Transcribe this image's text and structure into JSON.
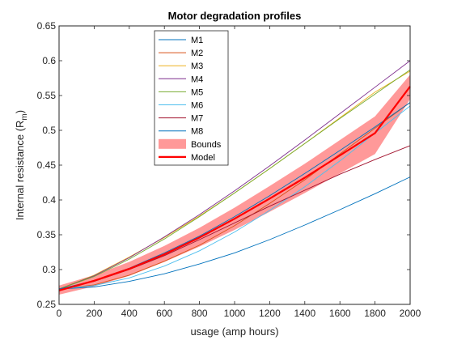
{
  "chart_data": {
    "type": "line",
    "title": "Motor degradation profiles",
    "xlabel": "usage (amp hours)",
    "ylabel_main": "Internal resistance (R",
    "ylabel_sub": "m",
    "ylabel_close": ")",
    "xlim": [
      0,
      2000
    ],
    "ylim": [
      0.25,
      0.65
    ],
    "xticks": [
      0,
      200,
      400,
      600,
      800,
      1000,
      1200,
      1400,
      1600,
      1800,
      2000
    ],
    "yticks": [
      0.25,
      0.3,
      0.35,
      0.4,
      0.45,
      0.5,
      0.55,
      0.6,
      0.65
    ],
    "ytick_labels": [
      "0.25",
      "0.3",
      "0.35",
      "0.4",
      "0.45",
      "0.5",
      "0.55",
      "0.6",
      "0.65"
    ],
    "grid": false,
    "legend_position": "top-left inside",
    "x": [
      0,
      200,
      400,
      600,
      800,
      1000,
      1200,
      1400,
      1600,
      1800,
      2000
    ],
    "series": [
      {
        "name": "M1",
        "color": "#0072BD",
        "values": [
          0.272,
          0.275,
          0.283,
          0.294,
          0.308,
          0.324,
          0.343,
          0.364,
          0.386,
          0.409,
          0.433
        ]
      },
      {
        "name": "M2",
        "color": "#D95319",
        "values": [
          0.272,
          0.278,
          0.292,
          0.312,
          0.335,
          0.363,
          0.395,
          0.429,
          0.466,
          0.503,
          0.54
        ]
      },
      {
        "name": "M3",
        "color": "#EDB120",
        "values": [
          0.272,
          0.292,
          0.318,
          0.346,
          0.377,
          0.41,
          0.445,
          0.481,
          0.518,
          0.555,
          0.585
        ]
      },
      {
        "name": "M4",
        "color": "#7E2F8E",
        "values": [
          0.272,
          0.291,
          0.317,
          0.347,
          0.379,
          0.413,
          0.449,
          0.486,
          0.524,
          0.562,
          0.6
        ]
      },
      {
        "name": "M5",
        "color": "#77AC30",
        "values": [
          0.272,
          0.29,
          0.315,
          0.344,
          0.376,
          0.41,
          0.445,
          0.481,
          0.517,
          0.552,
          0.587
        ]
      },
      {
        "name": "M6",
        "color": "#4DBEEE",
        "values": [
          0.272,
          0.277,
          0.288,
          0.305,
          0.327,
          0.354,
          0.385,
          0.419,
          0.456,
          0.496,
          0.535
        ]
      },
      {
        "name": "M7",
        "color": "#A2142F",
        "values": [
          0.272,
          0.283,
          0.3,
          0.32,
          0.343,
          0.367,
          0.391,
          0.414,
          0.437,
          0.458,
          0.478
        ]
      },
      {
        "name": "M8",
        "color": "#0072BD",
        "values": [
          0.272,
          0.284,
          0.302,
          0.324,
          0.348,
          0.376,
          0.406,
          0.438,
          0.471,
          0.505,
          0.54
        ]
      }
    ],
    "bounds": {
      "name": "Bounds",
      "color": "#FF9999",
      "lower": [
        0.264,
        0.276,
        0.291,
        0.311,
        0.333,
        0.357,
        0.383,
        0.41,
        0.438,
        0.466,
        0.545
      ],
      "upper": [
        0.277,
        0.292,
        0.311,
        0.334,
        0.36,
        0.389,
        0.42,
        0.452,
        0.486,
        0.52,
        0.58
      ]
    },
    "model": {
      "name": "Model",
      "color": "#FF0000",
      "values": [
        0.27,
        0.284,
        0.301,
        0.322,
        0.346,
        0.373,
        0.402,
        0.432,
        0.464,
        0.496,
        0.563
      ]
    }
  }
}
